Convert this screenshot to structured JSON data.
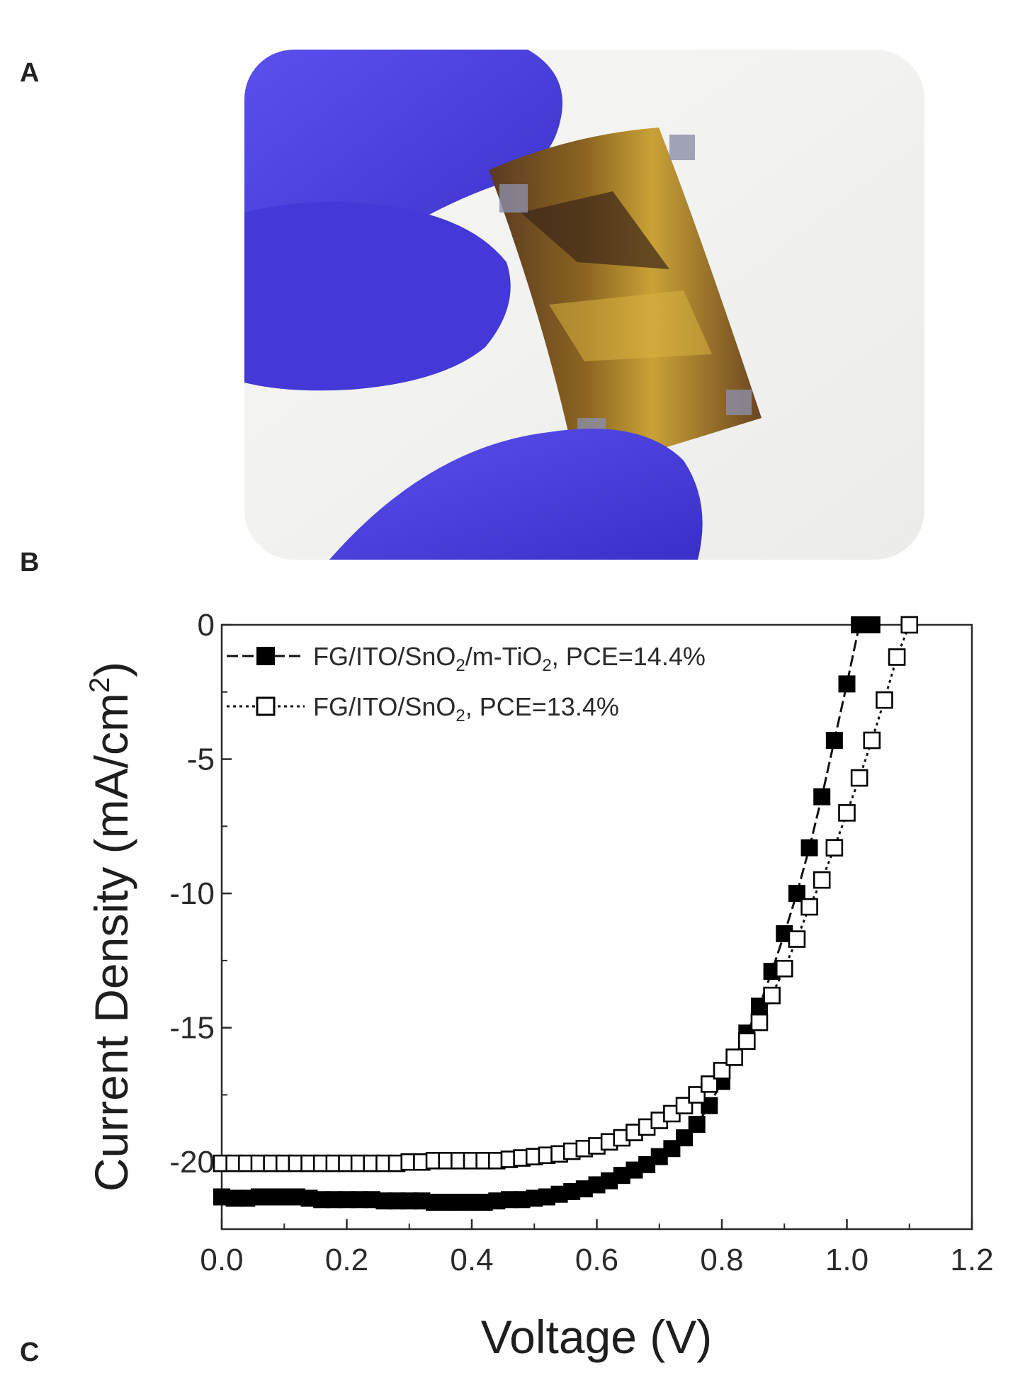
{
  "panels": {
    "a": "A",
    "b": "B",
    "c": "C"
  },
  "photo": {
    "glove_color": "#4b3fe0",
    "device_colors": [
      "#8a6420",
      "#5a3218",
      "#c9a236"
    ]
  },
  "chart_data": {
    "type": "scatter",
    "xlabel": "Voltage (V)",
    "ylabel": "Current Density (mA/cm",
    "ylabel_sup": "2",
    "ylabel_end": ")",
    "xlim": [
      0.0,
      1.2
    ],
    "ylim": [
      -22.5,
      0
    ],
    "xticks": [
      "0.0",
      "0.2",
      "0.4",
      "0.6",
      "0.8",
      "1.0",
      "1.2"
    ],
    "yticks": [
      "0",
      "-5",
      "-10",
      "-15",
      "-20"
    ],
    "legend_position": "top-left",
    "series": [
      {
        "name": "FG/ITO/SnO2/m-TiO2, PCE=14.4%",
        "marker": "filled-square",
        "legend": {
          "pre": "FG/ITO/SnO",
          "sub1": "2",
          "mid": "/m-TiO",
          "sub2": "2",
          "post": ", PCE=14.4%"
        },
        "x": [
          0.0,
          0.02,
          0.04,
          0.06,
          0.08,
          0.1,
          0.12,
          0.14,
          0.16,
          0.18,
          0.2,
          0.22,
          0.24,
          0.26,
          0.28,
          0.3,
          0.32,
          0.34,
          0.36,
          0.38,
          0.4,
          0.42,
          0.44,
          0.46,
          0.48,
          0.5,
          0.52,
          0.54,
          0.56,
          0.58,
          0.6,
          0.62,
          0.64,
          0.66,
          0.68,
          0.7,
          0.72,
          0.74,
          0.76,
          0.78,
          0.8,
          0.82,
          0.84,
          0.86,
          0.88,
          0.9,
          0.92,
          0.94,
          0.96,
          0.98,
          1.0,
          1.02,
          1.04
        ],
        "y": [
          -21.3,
          -21.35,
          -21.35,
          -21.3,
          -21.3,
          -21.3,
          -21.3,
          -21.35,
          -21.4,
          -21.4,
          -21.4,
          -21.4,
          -21.4,
          -21.45,
          -21.45,
          -21.45,
          -21.45,
          -21.5,
          -21.5,
          -21.5,
          -21.5,
          -21.5,
          -21.45,
          -21.4,
          -21.4,
          -21.35,
          -21.3,
          -21.2,
          -21.1,
          -21.0,
          -20.85,
          -20.7,
          -20.5,
          -20.3,
          -20.1,
          -19.8,
          -19.5,
          -19.1,
          -18.6,
          -17.9,
          -17.0,
          -16.1,
          -15.2,
          -14.2,
          -12.9,
          -11.5,
          -10.0,
          -8.3,
          -6.4,
          -4.3,
          -2.2,
          0.0,
          0.0
        ]
      },
      {
        "name": "FG/ITO/SnO2, PCE=13.4%",
        "marker": "open-square",
        "legend": {
          "pre": "FG/ITO/SnO",
          "sub1": "2",
          "post": ", PCE=13.4%"
        },
        "x": [
          0.0,
          0.02,
          0.04,
          0.06,
          0.08,
          0.1,
          0.12,
          0.14,
          0.16,
          0.18,
          0.2,
          0.22,
          0.24,
          0.26,
          0.28,
          0.3,
          0.32,
          0.34,
          0.36,
          0.38,
          0.4,
          0.42,
          0.44,
          0.46,
          0.48,
          0.5,
          0.52,
          0.54,
          0.56,
          0.58,
          0.6,
          0.62,
          0.64,
          0.66,
          0.68,
          0.7,
          0.72,
          0.74,
          0.76,
          0.78,
          0.8,
          0.82,
          0.84,
          0.86,
          0.88,
          0.9,
          0.92,
          0.94,
          0.96,
          0.98,
          1.0,
          1.02,
          1.04,
          1.06,
          1.08,
          1.1
        ],
        "y": [
          -20.05,
          -20.05,
          -20.05,
          -20.05,
          -20.05,
          -20.05,
          -20.05,
          -20.05,
          -20.05,
          -20.05,
          -20.05,
          -20.05,
          -20.05,
          -20.05,
          -20.05,
          -20.0,
          -20.0,
          -19.95,
          -19.95,
          -19.95,
          -19.95,
          -19.95,
          -19.95,
          -19.9,
          -19.85,
          -19.8,
          -19.75,
          -19.7,
          -19.6,
          -19.5,
          -19.4,
          -19.25,
          -19.1,
          -18.9,
          -18.7,
          -18.45,
          -18.2,
          -17.9,
          -17.5,
          -17.1,
          -16.6,
          -16.1,
          -15.5,
          -14.8,
          -13.8,
          -12.8,
          -11.7,
          -10.5,
          -9.5,
          -8.3,
          -7.0,
          -5.7,
          -4.3,
          -2.8,
          -1.2,
          0.0
        ]
      }
    ]
  }
}
